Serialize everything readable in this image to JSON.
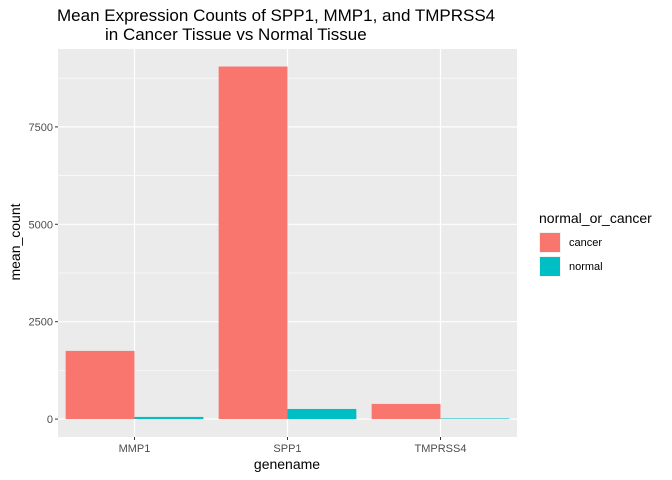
{
  "chart_data": {
    "type": "bar",
    "title_lines": [
      "Mean Expression Counts of SPP1, MMP1, and TMPRSS4",
      "in Cancer Tissue vs Normal Tissue"
    ],
    "xlabel": "genename",
    "ylabel": "mean_count",
    "categories": [
      "MMP1",
      "SPP1",
      "TMPRSS4"
    ],
    "series": [
      {
        "name": "cancer",
        "color": "#F8766D",
        "values": [
          1750,
          9050,
          390
        ]
      },
      {
        "name": "normal",
        "color": "#00BFC4",
        "values": [
          55,
          260,
          15
        ]
      }
    ],
    "ylim": [
      -460,
      9500
    ],
    "yticks": [
      0,
      2500,
      5000,
      7500
    ],
    "ytick_labels": [
      "0",
      "2500",
      "5000",
      "7500"
    ],
    "grid": true,
    "legend": {
      "title": "normal_or_cancer",
      "position": "right"
    },
    "colors": {
      "panel_background": "#EBEBEB",
      "grid": "#FFFFFF"
    }
  }
}
